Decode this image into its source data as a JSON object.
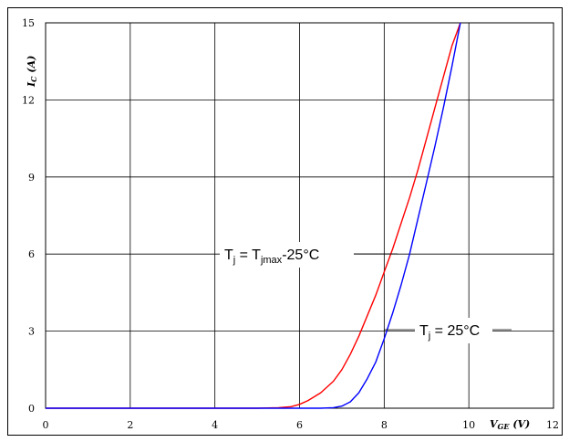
{
  "chart_data": {
    "type": "line",
    "xlim": [
      0,
      12
    ],
    "ylim": [
      0,
      15
    ],
    "x_ticks": [
      "0",
      "2",
      "4",
      "6",
      "8",
      "10",
      "12"
    ],
    "y_ticks": [
      "0",
      "3",
      "6",
      "9",
      "12",
      "15"
    ],
    "xlabel": {
      "main": "V",
      "sub": "GE",
      "unit": " (V)"
    },
    "ylabel": {
      "main": "I",
      "sub": "C",
      "unit": " (A)"
    },
    "grid": true,
    "series": [
      {
        "color": "#ff0000",
        "x": [
          0,
          4.0,
          5.0,
          5.5,
          5.8,
          6.0,
          6.2,
          6.5,
          6.8,
          7.0,
          7.2,
          7.4,
          7.6,
          7.8,
          8.0,
          8.2,
          8.4,
          8.6,
          8.8,
          9.0,
          9.2,
          9.4,
          9.6,
          9.8
        ],
        "y": [
          0,
          0,
          0,
          0.02,
          0.06,
          0.15,
          0.3,
          0.6,
          1.05,
          1.5,
          2.1,
          2.8,
          3.6,
          4.4,
          5.3,
          6.2,
          7.2,
          8.2,
          9.3,
          10.5,
          11.7,
          12.9,
          14.1,
          15.0
        ]
      },
      {
        "color": "#0000ff",
        "x": [
          0,
          5.0,
          6.0,
          6.5,
          6.8,
          7.0,
          7.2,
          7.4,
          7.6,
          7.8,
          8.0,
          8.2,
          8.4,
          8.6,
          8.8,
          9.0,
          9.2,
          9.4,
          9.6,
          9.8
        ],
        "y": [
          0,
          0,
          0,
          0,
          0.02,
          0.08,
          0.25,
          0.6,
          1.15,
          1.8,
          2.7,
          3.7,
          4.8,
          6.0,
          7.4,
          8.8,
          10.2,
          11.7,
          13.3,
          15.0
        ]
      }
    ],
    "annotations": [
      {
        "label": "Tj = Tjmax-25°C",
        "parts": [
          {
            "t": "T",
            "s": "n"
          },
          {
            "t": "j",
            "s": "sub"
          },
          {
            "t": " = T",
            "s": "n"
          },
          {
            "t": "jmax",
            "s": "sub"
          },
          {
            "t": "-25°C",
            "s": "n"
          }
        ]
      },
      {
        "label": "Tj = 25°C",
        "parts": [
          {
            "t": "T",
            "s": "n"
          },
          {
            "t": "j",
            "s": "sub"
          },
          {
            "t": " = 25°C",
            "s": "n"
          }
        ]
      }
    ]
  }
}
